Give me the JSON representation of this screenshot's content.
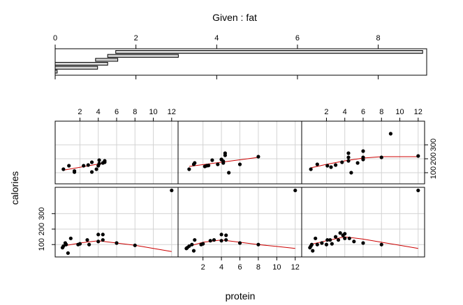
{
  "chart_data": {
    "type": "coplot",
    "given": {
      "title": "Given : fat",
      "ticks": [
        0,
        2,
        4,
        6,
        8
      ],
      "xlim": [
        0,
        9.2
      ],
      "intervals": [
        [
          0,
          0.05
        ],
        [
          0,
          1.05
        ],
        [
          0,
          1.3
        ],
        [
          1.0,
          1.55
        ],
        [
          1.3,
          3.05
        ],
        [
          1.5,
          9.1
        ]
      ]
    },
    "xlabel": "protein",
    "ylabel": "calories",
    "xlim": [
      -0.7,
      12.7
    ],
    "ylim": [
      20,
      470
    ],
    "xticks": [
      2,
      4,
      6,
      8,
      10,
      12
    ],
    "yticks": [
      100,
      200,
      300
    ],
    "points_color": "#000000",
    "smooth_color": "#cc0000",
    "grid_color": "#d3d3d3",
    "panels": [
      {
        "row": 0,
        "col": 0,
        "points": [
          [
            0.2,
            125
          ],
          [
            0.8,
            150
          ],
          [
            1.4,
            112
          ],
          [
            1.4,
            104
          ],
          [
            2.4,
            150
          ],
          [
            2.9,
            155
          ],
          [
            3.3,
            105
          ],
          [
            3.3,
            175
          ],
          [
            3.8,
            125
          ],
          [
            4.0,
            150
          ],
          [
            4.1,
            190
          ],
          [
            4.1,
            165
          ],
          [
            4.5,
            170
          ],
          [
            4.7,
            175
          ],
          [
            4.7,
            185
          ]
        ],
        "smooth": [
          [
            0.2,
            118
          ],
          [
            4.7,
            170
          ]
        ]
      },
      {
        "row": 0,
        "col": 1,
        "points": [
          [
            0.5,
            125
          ],
          [
            1.0,
            160
          ],
          [
            1.1,
            170
          ],
          [
            2.2,
            145
          ],
          [
            2.4,
            150
          ],
          [
            2.6,
            152
          ],
          [
            3.0,
            190
          ],
          [
            3.6,
            160
          ],
          [
            4.0,
            195
          ],
          [
            4.0,
            195
          ],
          [
            4.2,
            170
          ],
          [
            4.2,
            182
          ],
          [
            4.4,
            240
          ],
          [
            4.4,
            225
          ],
          [
            4.8,
            100
          ],
          [
            6.0,
            160
          ],
          [
            8.0,
            215
          ]
        ],
        "smooth": [
          [
            0.5,
            145
          ],
          [
            8.0,
            210
          ]
        ]
      },
      {
        "row": 0,
        "col": 2,
        "points": [
          [
            0.3,
            125
          ],
          [
            1.0,
            160
          ],
          [
            2.1,
            150
          ],
          [
            2.5,
            140
          ],
          [
            3.0,
            155
          ],
          [
            3.7,
            175
          ],
          [
            4.4,
            210
          ],
          [
            4.4,
            185
          ],
          [
            4.4,
            240
          ],
          [
            4.7,
            100
          ],
          [
            5.4,
            170
          ],
          [
            6.0,
            195
          ],
          [
            6.0,
            210
          ],
          [
            6.0,
            255
          ],
          [
            8.0,
            210
          ],
          [
            9.0,
            380
          ],
          [
            12.0,
            220
          ]
        ],
        "smooth": [
          [
            0.3,
            135
          ],
          [
            2.0,
            160
          ],
          [
            4.0,
            185
          ],
          [
            6.0,
            205
          ],
          [
            8.0,
            215
          ],
          [
            12.0,
            215
          ]
        ]
      },
      {
        "row": 1,
        "col": 0,
        "points": [
          [
            0.1,
            80
          ],
          [
            0.2,
            90
          ],
          [
            0.4,
            110
          ],
          [
            0.5,
            100
          ],
          [
            0.7,
            45
          ],
          [
            1.0,
            140
          ],
          [
            1.8,
            100
          ],
          [
            2.0,
            105
          ],
          [
            2.8,
            130
          ],
          [
            3.0,
            100
          ],
          [
            4.0,
            165
          ],
          [
            4.0,
            120
          ],
          [
            4.5,
            165
          ],
          [
            4.5,
            130
          ],
          [
            6.0,
            110
          ],
          [
            8.0,
            95
          ],
          [
            12.0,
            450
          ]
        ],
        "smooth": [
          [
            0.1,
            90
          ],
          [
            2.0,
            110
          ],
          [
            4.0,
            125
          ],
          [
            6.0,
            110
          ],
          [
            8.0,
            95
          ],
          [
            10.0,
            75
          ],
          [
            12.0,
            55
          ]
        ]
      },
      {
        "row": 1,
        "col": 1,
        "points": [
          [
            0.2,
            75
          ],
          [
            0.3,
            80
          ],
          [
            0.5,
            90
          ],
          [
            0.8,
            100
          ],
          [
            1.0,
            60
          ],
          [
            1.1,
            130
          ],
          [
            1.8,
            100
          ],
          [
            2.0,
            105
          ],
          [
            2.8,
            125
          ],
          [
            3.2,
            130
          ],
          [
            4.0,
            165
          ],
          [
            4.0,
            125
          ],
          [
            4.5,
            160
          ],
          [
            4.5,
            130
          ],
          [
            6.0,
            110
          ],
          [
            8.0,
            100
          ],
          [
            12.0,
            450
          ]
        ],
        "smooth": [
          [
            0.2,
            85
          ],
          [
            2.0,
            115
          ],
          [
            4.0,
            130
          ],
          [
            6.0,
            115
          ],
          [
            8.0,
            100
          ],
          [
            10.0,
            88
          ],
          [
            12.0,
            75
          ]
        ]
      },
      {
        "row": 1,
        "col": 2,
        "points": [
          [
            0.2,
            80
          ],
          [
            0.3,
            90
          ],
          [
            0.4,
            100
          ],
          [
            0.5,
            60
          ],
          [
            0.8,
            140
          ],
          [
            1.0,
            100
          ],
          [
            1.5,
            110
          ],
          [
            2.0,
            100
          ],
          [
            2.1,
            130
          ],
          [
            2.4,
            130
          ],
          [
            2.6,
            105
          ],
          [
            3.0,
            150
          ],
          [
            3.3,
            130
          ],
          [
            3.5,
            175
          ],
          [
            3.8,
            160
          ],
          [
            4.0,
            140
          ],
          [
            4.0,
            170
          ],
          [
            4.5,
            140
          ],
          [
            5.0,
            120
          ],
          [
            6.0,
            110
          ],
          [
            8.0,
            100
          ],
          [
            12.0,
            450
          ]
        ],
        "smooth": [
          [
            0.2,
            100
          ],
          [
            2.0,
            125
          ],
          [
            4.0,
            150
          ],
          [
            6.0,
            135
          ],
          [
            8.0,
            115
          ],
          [
            10.0,
            95
          ],
          [
            12.0,
            75
          ]
        ]
      }
    ]
  }
}
